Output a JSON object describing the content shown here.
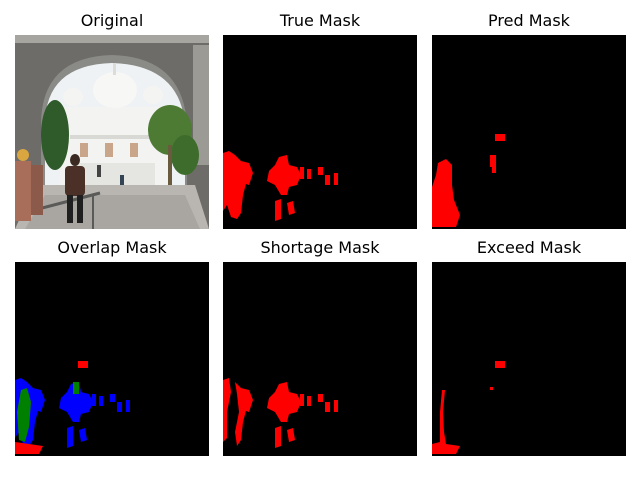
{
  "figure": {
    "panels": [
      {
        "id": "original",
        "title": "Original"
      },
      {
        "id": "true-mask",
        "title": "True Mask"
      },
      {
        "id": "pred-mask",
        "title": "Pred Mask"
      },
      {
        "id": "overlap-mask",
        "title": "Overlap Mask"
      },
      {
        "id": "shortage-mask",
        "title": "Shortage Mask"
      },
      {
        "id": "exceed-mask",
        "title": "Exceed Mask"
      }
    ],
    "colors": {
      "background": "#000000",
      "mask": "#ff0000",
      "overlap_true_only": "#0000ff",
      "overlap_both": "#008000"
    }
  }
}
